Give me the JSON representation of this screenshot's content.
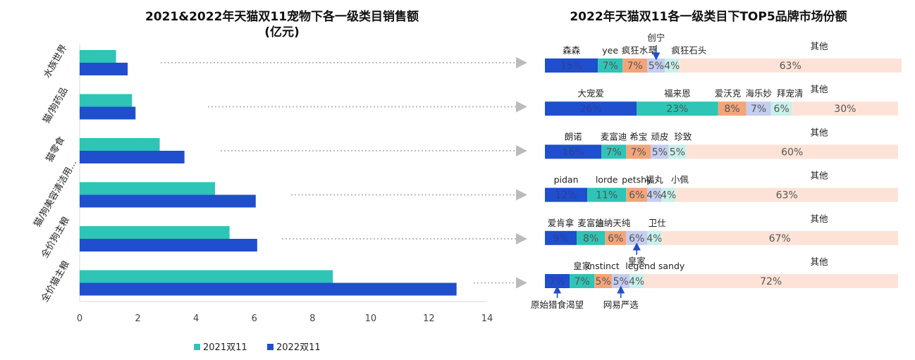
{
  "chart_data": [
    {
      "type": "bar",
      "orientation": "horizontal",
      "title": "2021&2022年天猫双11宠物下各一级类目销售额",
      "subtitle": "(亿元)",
      "categories": [
        "水族世界",
        "猫/狗药品",
        "猫零食",
        "猫/狗美容清洁用...",
        "全价狗主粮",
        "全价猫主粮"
      ],
      "series": [
        {
          "name": "2021双11",
          "color": "#2ec4b6",
          "values": [
            1.25,
            1.8,
            2.75,
            4.65,
            5.15,
            8.7
          ]
        },
        {
          "name": "2022双11",
          "color": "#1f4fcc",
          "values": [
            1.65,
            1.92,
            3.6,
            6.05,
            6.1,
            12.95
          ]
        }
      ],
      "xlim": [
        0,
        14
      ],
      "xticks": [
        "0",
        "2",
        "4",
        "6",
        "8",
        "10",
        "12",
        "14"
      ],
      "legend": "bottom"
    },
    {
      "type": "bar",
      "orientation": "stacked-100",
      "title": "2022年天猫双11各一级类目下TOP5品牌市场份额",
      "rows": [
        {
          "category": "水族世界",
          "segments": [
            {
              "label": "森森",
              "value": 15,
              "text": "15%"
            },
            {
              "label": "yee",
              "value": 7,
              "text": "7%"
            },
            {
              "label": "疯狂水草",
              "value": 7,
              "text": "7%"
            },
            {
              "label": "创宁",
              "value": 5,
              "text": "5%"
            },
            {
              "label": "疯狂石头",
              "value": 4,
              "text": "4%"
            },
            {
              "label": "其他",
              "value": 63,
              "text": "63%"
            }
          ]
        },
        {
          "category": "猫/狗药品",
          "segments": [
            {
              "label": "大宠爱",
              "value": 26,
              "text": "26%"
            },
            {
              "label": "福来恩",
              "value": 23,
              "text": "23%"
            },
            {
              "label": "爱沃克",
              "value": 8,
              "text": "8%"
            },
            {
              "label": "海乐妙",
              "value": 7,
              "text": "7%"
            },
            {
              "label": "拜宠清",
              "value": 6,
              "text": "6%"
            },
            {
              "label": "其他",
              "value": 30,
              "text": "30%"
            }
          ]
        },
        {
          "category": "猫零食",
          "segments": [
            {
              "label": "朗诺",
              "value": 16,
              "text": "16%"
            },
            {
              "label": "麦富迪",
              "value": 7,
              "text": "7%"
            },
            {
              "label": "希宝",
              "value": 7,
              "text": "7%"
            },
            {
              "label": "顽皮",
              "value": 5,
              "text": "5%"
            },
            {
              "label": "珍致",
              "value": 5,
              "text": "5%"
            },
            {
              "label": "其他",
              "value": 60,
              "text": "60%"
            }
          ]
        },
        {
          "category": "猫/狗美容清洁用品",
          "segments": [
            {
              "label": "pidan",
              "value": 12,
              "text": "12%"
            },
            {
              "label": "lorde",
              "value": 11,
              "text": "11%"
            },
            {
              "label": "petshy",
              "value": 6,
              "text": "6%"
            },
            {
              "label": "福丸",
              "value": 4,
              "text": "4%"
            },
            {
              "label": "小佩",
              "value": 4,
              "text": "4%"
            },
            {
              "label": "其他",
              "value": 63,
              "text": "63%"
            }
          ]
        },
        {
          "category": "全价狗主粮",
          "segments": [
            {
              "label": "爱肯拿",
              "value": 9,
              "text": "9%"
            },
            {
              "label": "麦富迪",
              "value": 8,
              "text": "8%"
            },
            {
              "label": "伯纳天纯",
              "value": 6,
              "text": "6%"
            },
            {
              "label": "皇家",
              "value": 6,
              "text": "6%"
            },
            {
              "label": "卫仕",
              "value": 4,
              "text": "4%"
            },
            {
              "label": "其他",
              "value": 67,
              "text": "67%"
            }
          ]
        },
        {
          "category": "全价猫主粮",
          "segments": [
            {
              "label": "原始猎食渴望",
              "value": 7,
              "text": "7%"
            },
            {
              "label": "皇家",
              "value": 7,
              "text": "7%"
            },
            {
              "label": "instinct",
              "value": 5,
              "text": "5%"
            },
            {
              "label": "网易严选",
              "value": 5,
              "text": "5%"
            },
            {
              "label": "legend sandy",
              "value": 4,
              "text": "4%"
            },
            {
              "label": "其他",
              "value": 72,
              "text": "72%"
            }
          ]
        }
      ],
      "segment_colors": [
        "#1f4fcc",
        "#2ec4b6",
        "#f3a57a",
        "#c5cdf0",
        "#c8f0ea",
        "#fde3d7"
      ],
      "xlim": [
        0,
        100
      ]
    }
  ]
}
